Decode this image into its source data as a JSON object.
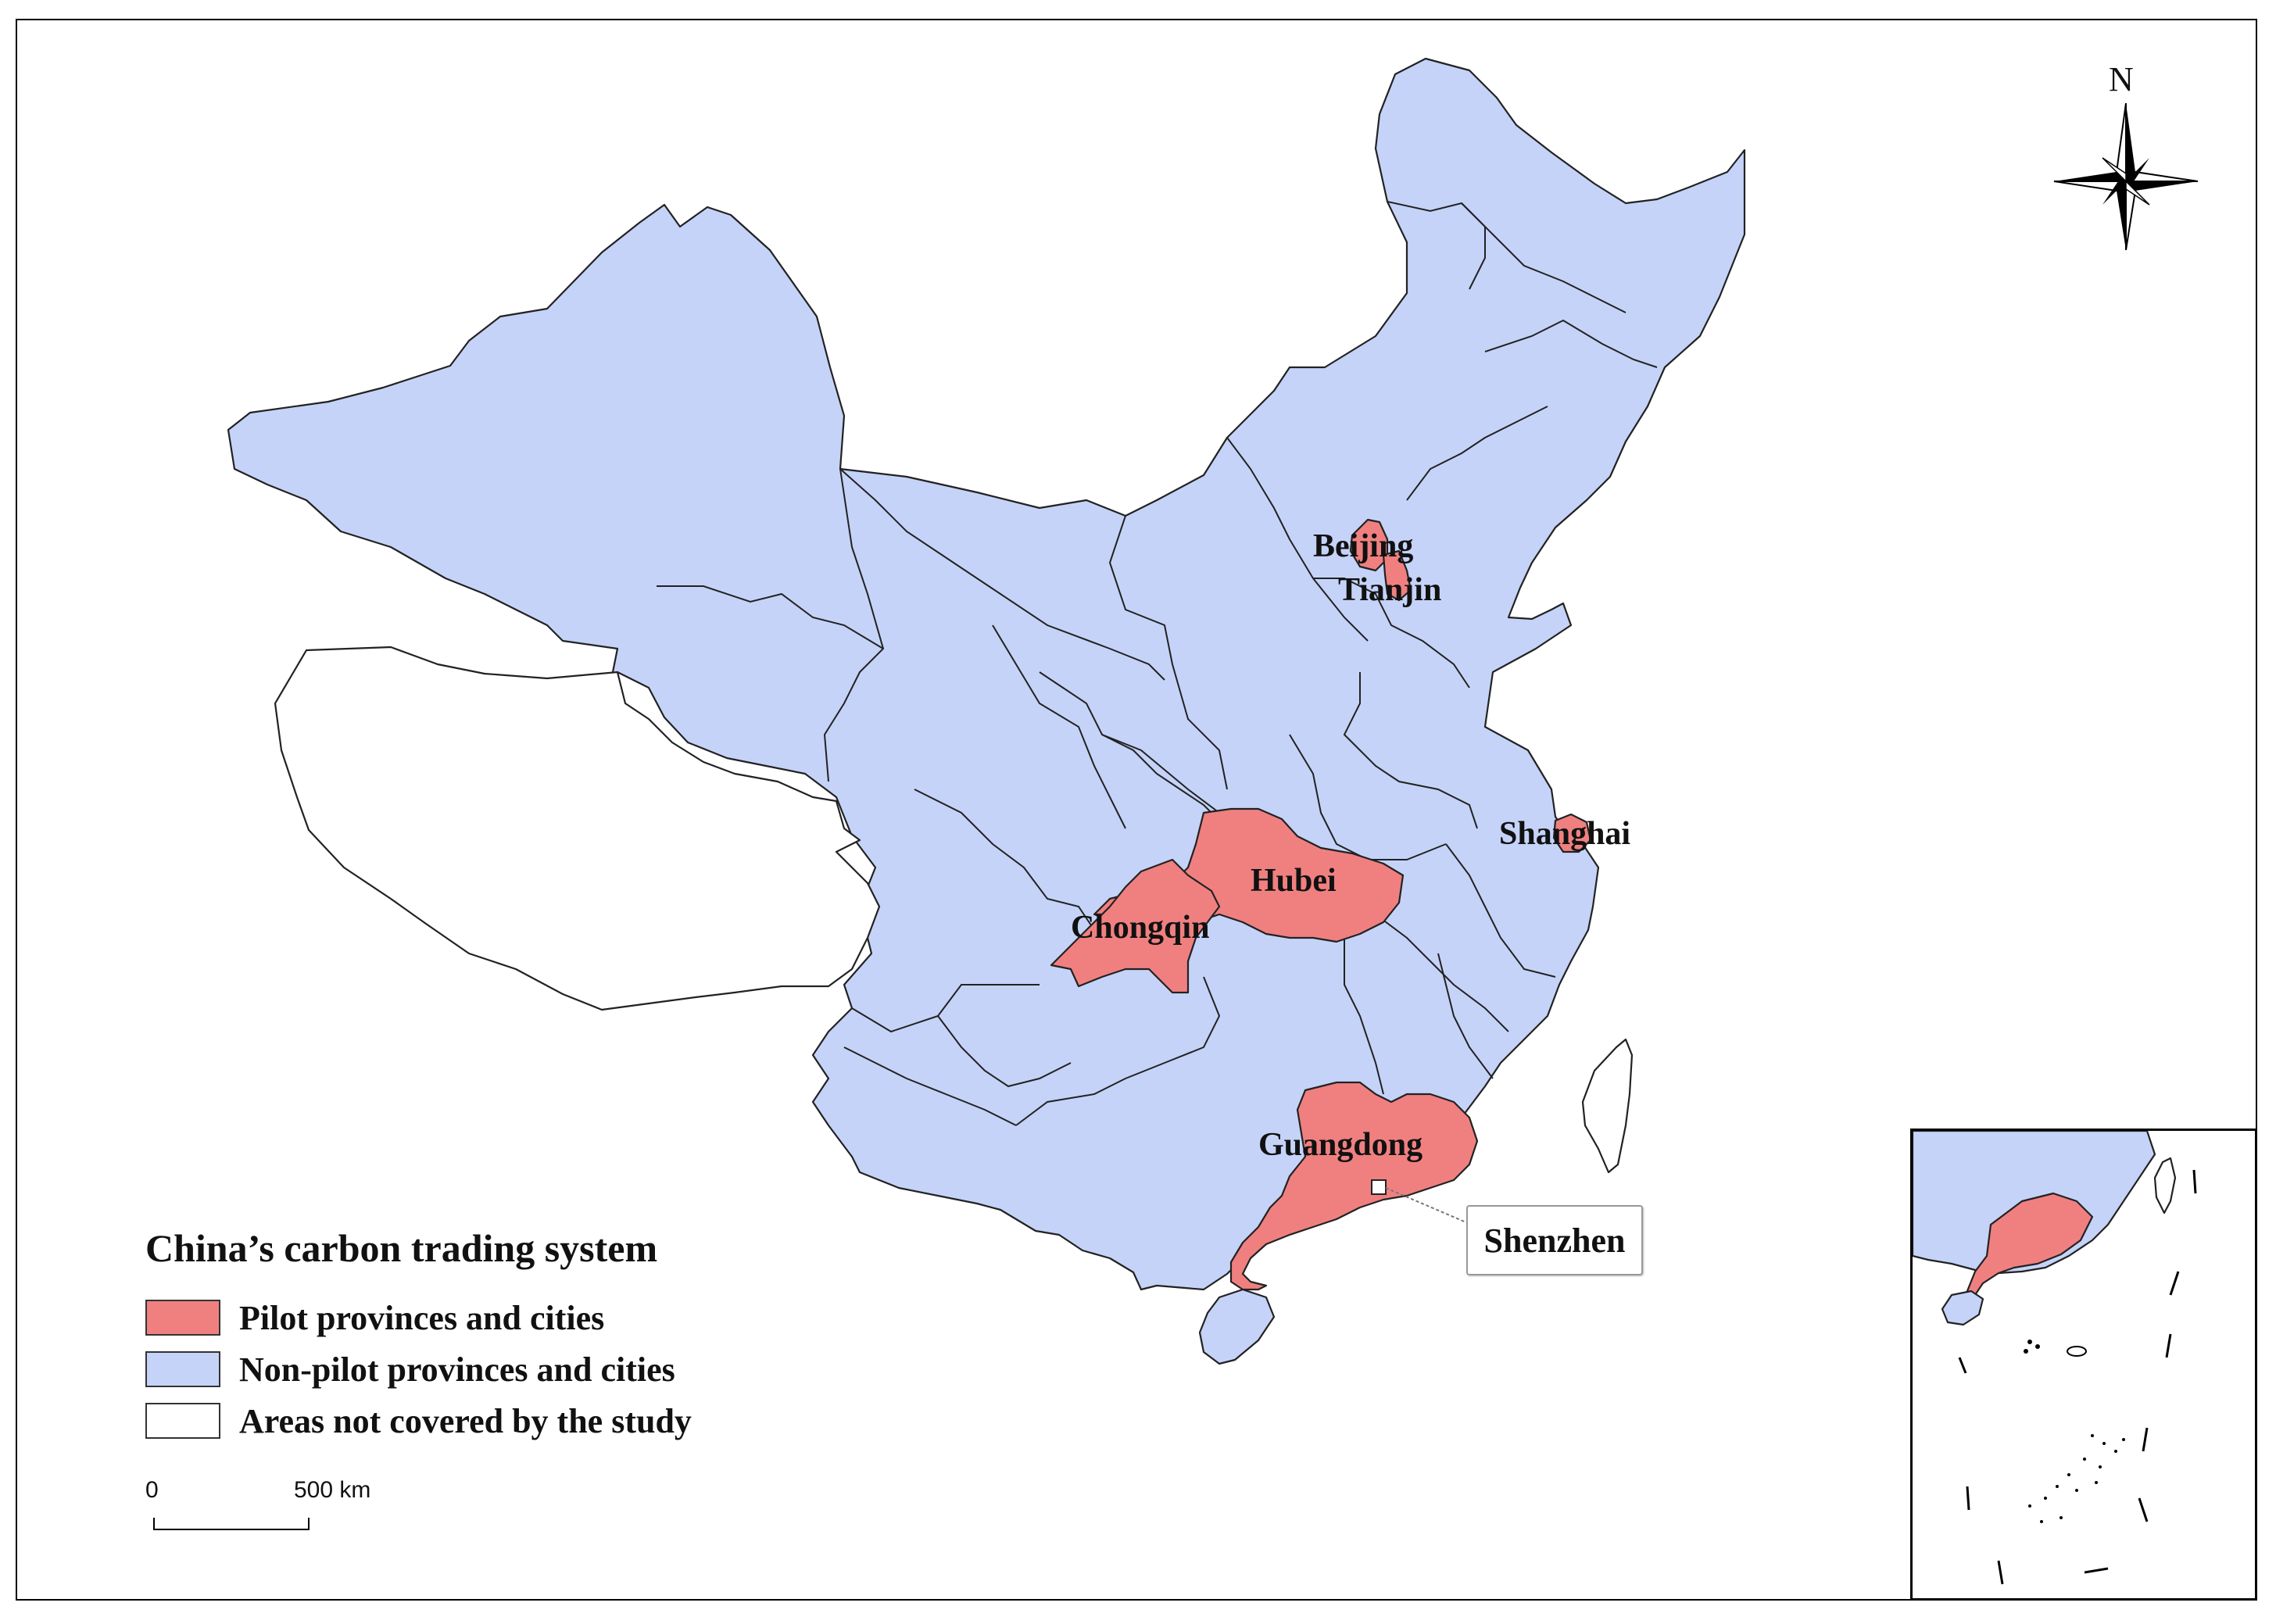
{
  "map": {
    "legend_title": "China’s carbon trading system",
    "legend_items": [
      {
        "label": "Pilot provinces and cities",
        "color": "#F08080"
      },
      {
        "label": "Non-pilot provinces and cities",
        "color": "#C5D3F8"
      },
      {
        "label": "Areas not covered by the study",
        "color": "#FFFFFF"
      }
    ],
    "region_labels": {
      "beijing": "Beijing",
      "tianjin": "Tianjin",
      "shanghai": "Shanghai",
      "hubei": "Hubei",
      "chongqing": "Chongqin",
      "guangdong": "Guangdong",
      "shenzhen": "Shenzhen"
    },
    "scale_bar": {
      "start": "0",
      "end": "500 km"
    },
    "north_arrow": {
      "label": "N",
      "icon": "compass-rose-icon"
    }
  }
}
